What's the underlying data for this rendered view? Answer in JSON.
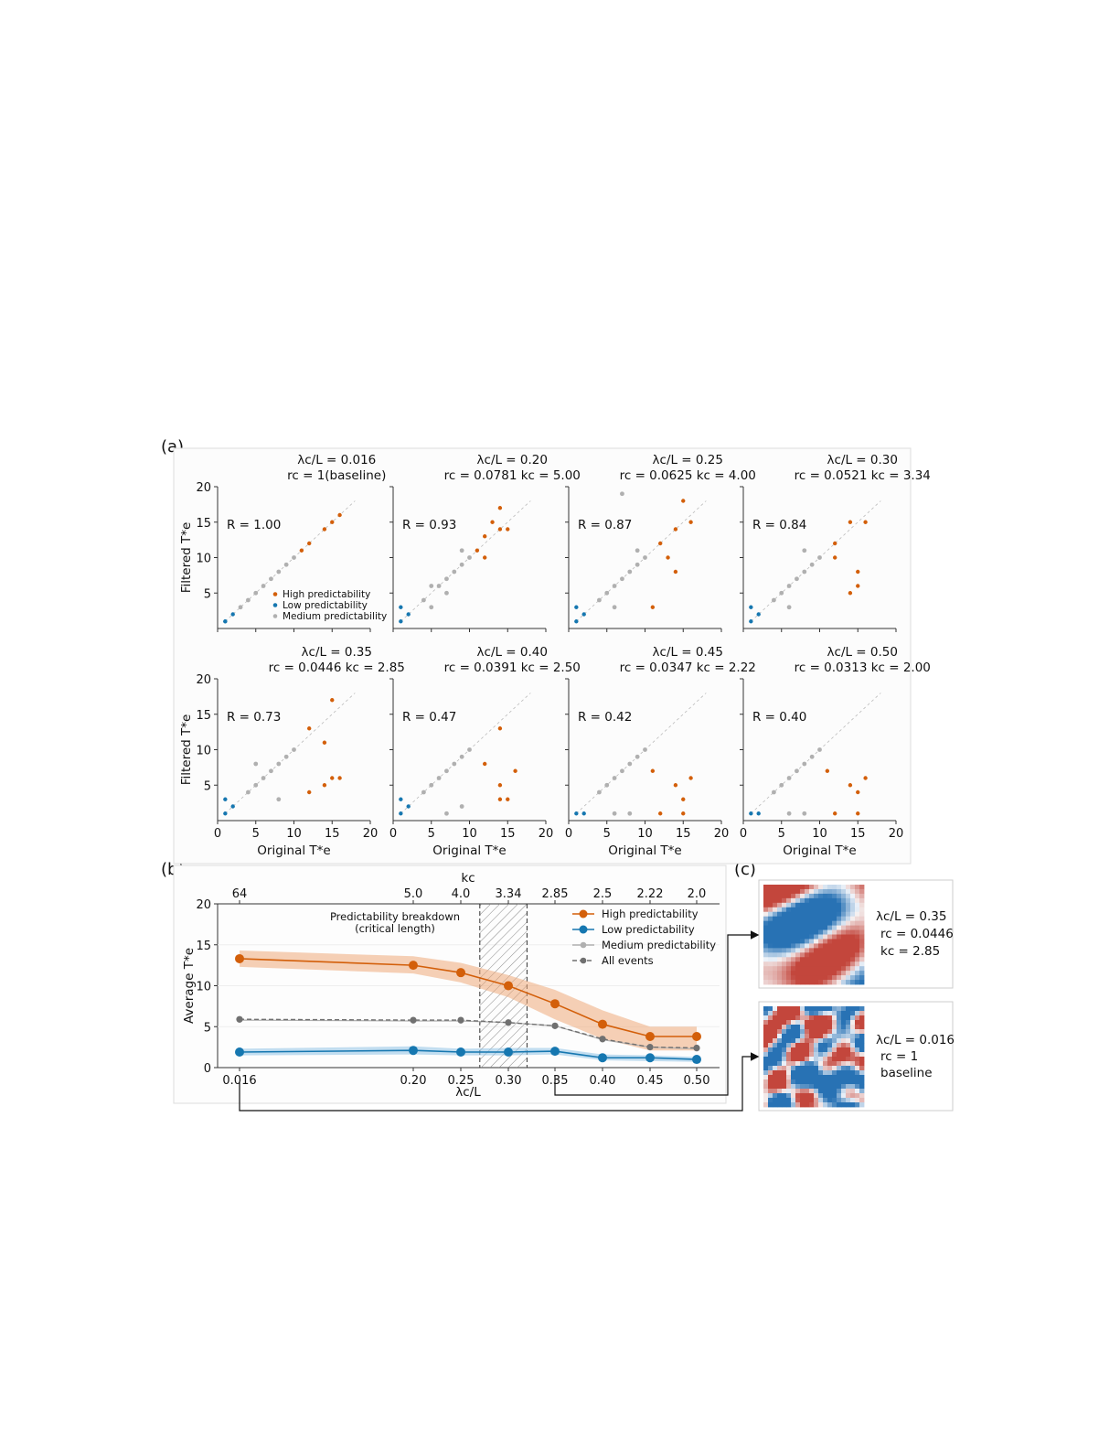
{
  "figure": {
    "panel_labels": [
      "(a)",
      "(b)",
      "(c)"
    ]
  },
  "colors": {
    "high": "#d35f0a",
    "low": "#1677b0",
    "medium": "#b0b0b0",
    "all": "#707070",
    "band_high": "#eea97a",
    "band_low": "#8fc3e6"
  },
  "panel_a": {
    "x_axis_label": "Original T*e",
    "y_axis_label": "Filtered T*e",
    "x_ticks": [
      "0",
      "5",
      "10",
      "15",
      "20"
    ],
    "y_ticks": [
      "5",
      "10",
      "15",
      "20"
    ],
    "legend": [
      "High predictability",
      "Low predictability",
      "Medium predictability"
    ],
    "subplots": [
      {
        "title1": "λc/L = 0.016",
        "title2": "rc = 1(baseline)",
        "R": "R = 1.00"
      },
      {
        "title1": "λc/L = 0.20",
        "title2": "rc = 0.0781 kc = 5.00",
        "R": "R = 0.93"
      },
      {
        "title1": "λc/L = 0.25",
        "title2": "rc = 0.0625 kc = 4.00",
        "R": "R = 0.87"
      },
      {
        "title1": "λc/L = 0.30",
        "title2": "rc = 0.0521 kc = 3.34",
        "R": "R = 0.84"
      },
      {
        "title1": "λc/L = 0.35",
        "title2": "rc = 0.0446 kc = 2.85",
        "R": "R = 0.73"
      },
      {
        "title1": "λc/L = 0.40",
        "title2": "rc = 0.0391 kc = 2.50",
        "R": "R = 0.47"
      },
      {
        "title1": "λc/L = 0.45",
        "title2": "rc = 0.0347 kc = 2.22",
        "R": "R = 0.42"
      },
      {
        "title1": "λc/L = 0.50",
        "title2": "rc = 0.0313 kc = 2.00",
        "R": "R = 0.40"
      }
    ]
  },
  "panel_b": {
    "x_label": "λc/L",
    "top_axis_label": "kc",
    "y_label": "Average T*e",
    "annotation_line1": "Predictability breakdown",
    "annotation_line2": "(critical length)",
    "legend": [
      "High predictability",
      "Low predictability",
      "Medium predictability",
      "All events"
    ]
  },
  "panel_c": {
    "items": [
      {
        "line1": "λc/L = 0.35",
        "line2": "rc = 0.0446",
        "line3": "kc = 2.85"
      },
      {
        "line1": "λc/L = 0.016",
        "line2": "rc = 1",
        "line3": "baseline"
      }
    ]
  },
  "chart_data": [
    {
      "type": "scatter",
      "panel": "(a)",
      "xlabel": "Original T*e",
      "ylabel": "Filtered T*e",
      "xlim": [
        0,
        20
      ],
      "ylim": [
        0,
        20
      ],
      "note": "8 subplots; correlation R per subplot",
      "subplots": [
        {
          "lambda_c_over_L": 0.016,
          "R": 1.0,
          "high": [
            [
              11,
              11
            ],
            [
              12,
              12
            ],
            [
              14,
              14
            ],
            [
              15,
              15
            ],
            [
              16,
              16
            ]
          ],
          "low": [
            [
              1,
              1
            ],
            [
              2,
              2
            ],
            [
              1,
              1
            ]
          ],
          "medium": [
            [
              3,
              3
            ],
            [
              4,
              4
            ],
            [
              5,
              5
            ],
            [
              6,
              6
            ],
            [
              7,
              7
            ],
            [
              8,
              8
            ],
            [
              9,
              9
            ],
            [
              10,
              10
            ]
          ]
        },
        {
          "lambda_c_over_L": 0.2,
          "R": 0.93,
          "high": [
            [
              12,
              13
            ],
            [
              13,
              15
            ],
            [
              14,
              14
            ],
            [
              14,
              17
            ],
            [
              15,
              14
            ],
            [
              12,
              10
            ],
            [
              11,
              11
            ]
          ],
          "low": [
            [
              1,
              1
            ],
            [
              1,
              3
            ],
            [
              2,
              2
            ]
          ],
          "medium": [
            [
              4,
              4
            ],
            [
              5,
              6
            ],
            [
              6,
              6
            ],
            [
              7,
              7
            ],
            [
              8,
              8
            ],
            [
              9,
              9
            ],
            [
              10,
              10
            ],
            [
              7,
              5
            ],
            [
              9,
              11
            ],
            [
              5,
              3
            ]
          ]
        },
        {
          "lambda_c_over_L": 0.25,
          "R": 0.87,
          "high": [
            [
              14,
              14
            ],
            [
              15,
              18
            ],
            [
              16,
              15
            ],
            [
              12,
              12
            ],
            [
              11,
              3
            ],
            [
              14,
              8
            ],
            [
              13,
              10
            ]
          ],
          "low": [
            [
              1,
              1
            ],
            [
              1,
              3
            ],
            [
              2,
              2
            ]
          ],
          "medium": [
            [
              4,
              4
            ],
            [
              5,
              5
            ],
            [
              6,
              6
            ],
            [
              7,
              7
            ],
            [
              8,
              8
            ],
            [
              9,
              9
            ],
            [
              10,
              10
            ],
            [
              7,
              19
            ],
            [
              6,
              3
            ],
            [
              9,
              11
            ]
          ]
        },
        {
          "lambda_c_over_L": 0.3,
          "R": 0.84,
          "high": [
            [
              12,
              12
            ],
            [
              14,
              15
            ],
            [
              15,
              8
            ],
            [
              15,
              6
            ],
            [
              14,
              5
            ],
            [
              16,
              15
            ],
            [
              12,
              10
            ]
          ],
          "low": [
            [
              1,
              1
            ],
            [
              1,
              3
            ],
            [
              2,
              2
            ]
          ],
          "medium": [
            [
              4,
              4
            ],
            [
              5,
              5
            ],
            [
              6,
              6
            ],
            [
              7,
              7
            ],
            [
              8,
              8
            ],
            [
              9,
              9
            ],
            [
              10,
              10
            ],
            [
              8,
              11
            ],
            [
              6,
              3
            ]
          ]
        },
        {
          "lambda_c_over_L": 0.35,
          "R": 0.73,
          "high": [
            [
              15,
              17
            ],
            [
              14,
              11
            ],
            [
              14,
              5
            ],
            [
              16,
              6
            ],
            [
              15,
              6
            ],
            [
              12,
              13
            ],
            [
              12,
              4
            ]
          ],
          "low": [
            [
              1,
              1
            ],
            [
              1,
              3
            ],
            [
              2,
              2
            ]
          ],
          "medium": [
            [
              4,
              4
            ],
            [
              5,
              5
            ],
            [
              6,
              6
            ],
            [
              7,
              7
            ],
            [
              8,
              8
            ],
            [
              9,
              9
            ],
            [
              10,
              10
            ],
            [
              5,
              8
            ],
            [
              8,
              3
            ]
          ]
        },
        {
          "lambda_c_over_L": 0.4,
          "R": 0.47,
          "high": [
            [
              14,
              13
            ],
            [
              14,
              5
            ],
            [
              14,
              3
            ],
            [
              16,
              7
            ],
            [
              15,
              3
            ],
            [
              12,
              8
            ]
          ],
          "low": [
            [
              1,
              1
            ],
            [
              1,
              3
            ],
            [
              2,
              2
            ]
          ],
          "medium": [
            [
              4,
              4
            ],
            [
              5,
              5
            ],
            [
              6,
              6
            ],
            [
              7,
              7
            ],
            [
              8,
              8
            ],
            [
              9,
              9
            ],
            [
              10,
              10
            ],
            [
              7,
              1
            ],
            [
              9,
              2
            ]
          ]
        },
        {
          "lambda_c_over_L": 0.45,
          "R": 0.42,
          "high": [
            [
              14,
              5
            ],
            [
              15,
              3
            ],
            [
              16,
              6
            ],
            [
              12,
              1
            ],
            [
              11,
              7
            ],
            [
              15,
              1
            ]
          ],
          "low": [
            [
              1,
              1
            ],
            [
              2,
              1
            ]
          ],
          "medium": [
            [
              4,
              4
            ],
            [
              5,
              5
            ],
            [
              6,
              6
            ],
            [
              7,
              7
            ],
            [
              8,
              8
            ],
            [
              9,
              9
            ],
            [
              10,
              10
            ],
            [
              6,
              1
            ],
            [
              8,
              1
            ]
          ]
        },
        {
          "lambda_c_over_L": 0.5,
          "R": 0.4,
          "high": [
            [
              14,
              5
            ],
            [
              15,
              4
            ],
            [
              16,
              6
            ],
            [
              12,
              1
            ],
            [
              11,
              7
            ],
            [
              15,
              1
            ]
          ],
          "low": [
            [
              1,
              1
            ],
            [
              2,
              1
            ]
          ],
          "medium": [
            [
              4,
              4
            ],
            [
              5,
              5
            ],
            [
              6,
              6
            ],
            [
              7,
              7
            ],
            [
              8,
              8
            ],
            [
              9,
              9
            ],
            [
              10,
              10
            ],
            [
              6,
              1
            ],
            [
              8,
              1
            ]
          ]
        }
      ]
    },
    {
      "type": "line",
      "panel": "(b)",
      "xlabel": "λc/L",
      "ylabel": "Average T*e",
      "top_axis": "kc",
      "ylim": [
        0,
        20
      ],
      "x_tick_labels": [
        "0.016",
        "0.20",
        "0.25",
        "0.30",
        "0.35",
        "0.40",
        "0.45",
        "0.50"
      ],
      "top_tick_labels": [
        "64",
        "5.0",
        "4.0",
        "3.34",
        "2.85",
        "2.5",
        "2.22",
        "2.0"
      ],
      "x": [
        0.016,
        0.2,
        0.25,
        0.3,
        0.35,
        0.4,
        0.45,
        0.5
      ],
      "y_ticks": [
        0,
        5,
        10,
        15,
        20
      ],
      "shaded_region": [
        0.27,
        0.32
      ],
      "series": [
        {
          "name": "High predictability",
          "values": [
            13.3,
            12.5,
            11.6,
            10.0,
            7.8,
            5.3,
            3.8,
            3.8
          ],
          "band_low": [
            12.3,
            11.5,
            10.4,
            8.6,
            5.9,
            3.5,
            2.1,
            2.1
          ],
          "band_high": [
            14.3,
            13.6,
            12.8,
            11.3,
            9.5,
            7.0,
            5.0,
            5.0
          ]
        },
        {
          "name": "Low predictability",
          "values": [
            1.9,
            2.1,
            1.9,
            1.9,
            2.0,
            1.2,
            1.2,
            1.0
          ],
          "band_low": [
            1.5,
            1.6,
            1.5,
            1.5,
            1.6,
            0.9,
            0.8,
            0.7
          ],
          "band_high": [
            2.3,
            2.6,
            2.3,
            2.4,
            2.4,
            1.6,
            1.5,
            1.3
          ]
        },
        {
          "name": "Medium predictability",
          "values": [
            5.8,
            5.7,
            5.7,
            5.5,
            5.1,
            3.4,
            2.5,
            2.3
          ]
        },
        {
          "name": "All events",
          "values": [
            5.9,
            5.8,
            5.8,
            5.5,
            5.1,
            3.5,
            2.5,
            2.4
          ]
        }
      ]
    }
  ]
}
